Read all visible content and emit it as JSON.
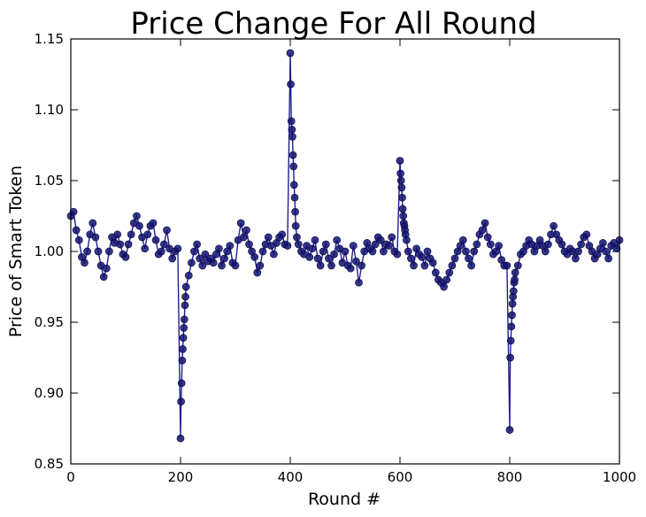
{
  "chart_data": {
    "type": "line",
    "title": "Price Change For All Round",
    "xlabel": "Round #",
    "ylabel": "Price of Smart Token",
    "xlim": [
      0,
      1000
    ],
    "ylim": [
      0.85,
      1.15
    ],
    "xticks": [
      0,
      200,
      400,
      600,
      800,
      1000
    ],
    "yticks": [
      0.85,
      0.9,
      0.95,
      1.0,
      1.05,
      1.1,
      1.15
    ],
    "xtick_labels": [
      "0",
      "200",
      "400",
      "600",
      "800",
      "1000"
    ],
    "ytick_labels": [
      "0.85",
      "0.90",
      "0.95",
      "1.00",
      "1.05",
      "1.10",
      "1.15"
    ],
    "grid": false,
    "colors": {
      "line": "#1f1f8f",
      "marker": "#141473"
    },
    "series": [
      {
        "marker": "circle",
        "x": [
          0,
          5,
          10,
          15,
          20,
          25,
          30,
          35,
          40,
          45,
          50,
          55,
          60,
          65,
          70,
          75,
          80,
          85,
          90,
          95,
          100,
          105,
          110,
          115,
          120,
          125,
          130,
          135,
          140,
          145,
          150,
          155,
          160,
          165,
          170,
          175,
          180,
          185,
          190,
          195,
          200,
          201,
          202,
          203,
          204,
          205,
          206,
          207,
          208,
          209,
          210,
          215,
          220,
          225,
          230,
          235,
          240,
          245,
          250,
          255,
          260,
          265,
          270,
          275,
          280,
          285,
          290,
          295,
          300,
          305,
          310,
          315,
          320,
          325,
          330,
          335,
          340,
          345,
          350,
          355,
          360,
          365,
          370,
          375,
          380,
          385,
          390,
          395,
          400,
          401,
          402,
          403,
          404,
          405,
          406,
          407,
          408,
          409,
          410,
          412,
          415,
          420,
          425,
          430,
          435,
          440,
          445,
          450,
          455,
          460,
          465,
          470,
          475,
          480,
          485,
          490,
          495,
          500,
          505,
          510,
          515,
          520,
          525,
          530,
          535,
          540,
          545,
          550,
          555,
          560,
          565,
          570,
          575,
          580,
          585,
          590,
          595,
          600,
          601,
          602,
          603,
          604,
          605,
          606,
          607,
          608,
          609,
          610,
          612,
          615,
          620,
          625,
          630,
          635,
          640,
          645,
          650,
          655,
          660,
          665,
          670,
          675,
          680,
          685,
          690,
          695,
          700,
          705,
          710,
          715,
          720,
          725,
          730,
          735,
          740,
          745,
          750,
          755,
          760,
          765,
          770,
          775,
          780,
          785,
          790,
          795,
          800,
          801,
          802,
          803,
          804,
          805,
          806,
          807,
          808,
          809,
          810,
          815,
          820,
          825,
          830,
          835,
          840,
          845,
          850,
          855,
          860,
          865,
          870,
          875,
          880,
          885,
          890,
          895,
          900,
          905,
          910,
          915,
          920,
          925,
          930,
          935,
          940,
          945,
          950,
          955,
          960,
          965,
          970,
          975,
          980,
          985,
          990,
          995,
          1000
        ],
        "y": [
          1.025,
          1.028,
          1.015,
          1.008,
          0.996,
          0.992,
          1.0,
          1.012,
          1.02,
          1.01,
          1.0,
          0.99,
          0.982,
          0.988,
          1.0,
          1.01,
          1.006,
          1.012,
          1.005,
          0.998,
          0.996,
          1.005,
          1.012,
          1.02,
          1.025,
          1.018,
          1.01,
          1.002,
          1.012,
          1.018,
          1.02,
          1.008,
          0.998,
          1.0,
          1.005,
          1.015,
          1.002,
          0.995,
          1.0,
          1.002,
          0.868,
          0.894,
          0.907,
          0.923,
          0.931,
          0.939,
          0.946,
          0.952,
          0.962,
          0.968,
          0.975,
          0.983,
          0.992,
          1.0,
          1.005,
          0.995,
          0.99,
          0.998,
          0.993,
          0.995,
          0.992,
          0.998,
          1.002,
          0.99,
          0.995,
          1.0,
          1.004,
          0.992,
          0.99,
          1.008,
          1.02,
          1.01,
          1.015,
          1.005,
          1.0,
          0.996,
          0.985,
          0.99,
          1.0,
          1.005,
          1.01,
          1.004,
          0.998,
          1.006,
          1.01,
          1.012,
          1.005,
          1.004,
          1.14,
          1.118,
          1.092,
          1.086,
          1.081,
          1.068,
          1.06,
          1.047,
          1.038,
          1.028,
          1.018,
          1.01,
          1.005,
          1.0,
          0.998,
          1.004,
          0.996,
          1.002,
          1.008,
          0.995,
          0.99,
          1.0,
          1.005,
          0.995,
          0.99,
          0.998,
          1.008,
          1.002,
          0.992,
          1.0,
          0.99,
          0.988,
          1.004,
          0.993,
          0.978,
          0.99,
          1.0,
          1.006,
          1.002,
          1.0,
          1.005,
          1.01,
          1.008,
          1.0,
          1.005,
          1.004,
          1.01,
          1.0,
          0.998,
          1.064,
          1.055,
          1.05,
          1.045,
          1.038,
          1.03,
          1.025,
          1.02,
          1.018,
          1.015,
          1.012,
          1.008,
          1.0,
          0.995,
          0.99,
          1.002,
          0.998,
          0.996,
          0.99,
          1.0,
          0.995,
          0.992,
          0.985,
          0.98,
          0.978,
          0.975,
          0.98,
          0.985,
          0.99,
          0.995,
          1.0,
          1.004,
          1.008,
          1.0,
          0.995,
          0.99,
          1.0,
          1.005,
          1.012,
          1.015,
          1.02,
          1.01,
          1.005,
          0.998,
          1.0,
          1.004,
          0.994,
          0.99,
          0.99,
          0.874,
          0.925,
          0.937,
          0.947,
          0.955,
          0.963,
          0.968,
          0.972,
          0.978,
          0.98,
          0.985,
          0.99,
          0.998,
          1.0,
          1.004,
          1.008,
          1.005,
          1.0,
          1.004,
          1.008,
          1.004,
          1.0,
          1.005,
          1.012,
          1.018,
          1.012,
          1.008,
          1.005,
          1.0,
          0.998,
          1.002,
          1.0,
          0.995,
          1.0,
          1.005,
          1.01,
          1.012,
          1.004,
          1.0,
          0.995,
          0.998,
          1.002,
          1.006,
          1.0,
          0.995,
          1.004,
          1.006,
          1.002,
          1.008
        ]
      }
    ]
  }
}
